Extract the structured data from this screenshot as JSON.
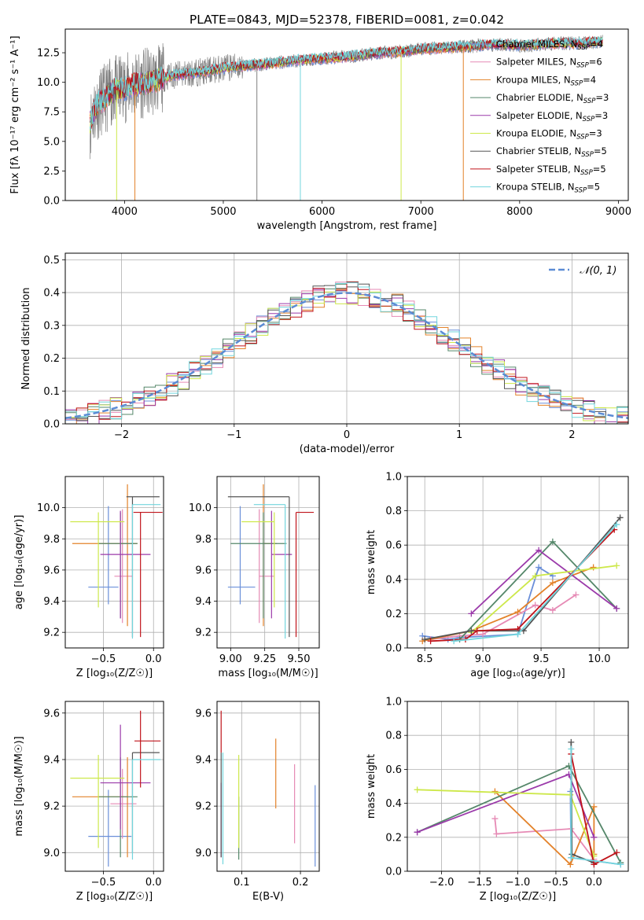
{
  "figure_title": "PLATE=0843, MJD=52378, FIBERID=0081, z=0.042",
  "colors": {
    "ch_miles": "#6a8fd9",
    "sa_miles": "#e68ab5",
    "kr_miles": "#e3822a",
    "ch_elodie": "#55876a",
    "sa_elodie": "#9b3aaa",
    "kr_elodie": "#cde84a",
    "ch_stelib": "#555555",
    "sa_stelib": "#c0141b",
    "kr_stelib": "#72d5dd",
    "data": "#808080",
    "normal": "#5b8bd4"
  },
  "legend_spectrum": [
    {
      "key": "ch_miles",
      "text": "Chabrier MILES, N",
      "sub": "SSP",
      "tail": "=4"
    },
    {
      "key": "sa_miles",
      "text": "Salpeter MILES, N",
      "sub": "SSP",
      "tail": "=6"
    },
    {
      "key": "kr_miles",
      "text": "Kroupa MILES, N",
      "sub": "SSP",
      "tail": "=4"
    },
    {
      "key": "ch_elodie",
      "text": "Chabrier ELODIE, N",
      "sub": "SSP",
      "tail": "=3"
    },
    {
      "key": "sa_elodie",
      "text": "Salpeter ELODIE, N",
      "sub": "SSP",
      "tail": "=3"
    },
    {
      "key": "kr_elodie",
      "text": "Kroupa ELODIE, N",
      "sub": "SSP",
      "tail": "=3"
    },
    {
      "key": "ch_stelib",
      "text": "Chabrier STELIB, N",
      "sub": "SSP",
      "tail": "=5"
    },
    {
      "key": "sa_stelib",
      "text": "Salpeter STELIB, N",
      "sub": "SSP",
      "tail": "=5"
    },
    {
      "key": "kr_stelib",
      "text": "Kroupa STELIB, N",
      "sub": "SSP",
      "tail": "=5"
    }
  ],
  "legend_hist": "𝒩(0, 1)",
  "chart_data": [
    {
      "id": "spectrum",
      "type": "line",
      "title": "PLATE=0843, MJD=52378, FIBERID=0081, z=0.042",
      "xlabel": "wavelength [Angstrom, rest frame]",
      "ylabel": "Flux [fλ 10⁻¹⁷ erg cm⁻² s⁻¹ A⁻¹]",
      "xlim": [
        3400,
        9100
      ],
      "ylim": [
        0,
        14.5
      ],
      "xticks": [
        4000,
        5000,
        6000,
        7000,
        8000,
        9000
      ],
      "yticks": [
        0.0,
        2.5,
        5.0,
        7.5,
        10.0,
        12.5
      ],
      "grid": false,
      "legend_position": "upper-right",
      "continuum": {
        "x": [
          3650,
          3700,
          3750,
          3800,
          3850,
          3900,
          4000,
          4100,
          4200,
          4300,
          4400,
          4500,
          4600,
          4800,
          5000,
          5200,
          5400,
          5600,
          5800,
          6000,
          6200,
          6400,
          6600,
          6800,
          7000,
          7200,
          7400,
          7600,
          7800,
          8000,
          8200,
          8400,
          8600,
          8800
        ],
        "y": [
          6.5,
          7.8,
          8.3,
          8.6,
          9.0,
          9.3,
          9.5,
          9.8,
          9.9,
          10.1,
          10.4,
          10.6,
          10.7,
          10.9,
          11.2,
          11.4,
          11.5,
          11.7,
          11.9,
          12.0,
          12.1,
          12.3,
          12.5,
          12.6,
          12.8,
          12.9,
          13.0,
          13.1,
          13.2,
          13.1,
          13.2,
          13.3,
          13.3,
          13.4
        ]
      },
      "dropouts": [
        {
          "x": 3920,
          "key": "kr_elodie",
          "y": 0
        },
        {
          "x": 4105,
          "key": "kr_miles",
          "y": 0
        },
        {
          "x": 5780,
          "key": "kr_stelib",
          "y": 0
        },
        {
          "x": 5340,
          "key": "data",
          "y": 0
        },
        {
          "x": 6800,
          "key": "kr_elodie",
          "y": 0
        },
        {
          "x": 7430,
          "key": "kr_miles",
          "y": 0
        }
      ]
    },
    {
      "id": "residuals",
      "type": "step",
      "xlabel": "(data-model)/error",
      "ylabel": "Normed distribution",
      "xlim": [
        -2.5,
        2.5
      ],
      "ylim": [
        0,
        0.52
      ],
      "xticks": [
        -2,
        -1,
        0,
        1,
        2
      ],
      "yticks": [
        0.0,
        0.1,
        0.2,
        0.3,
        0.4,
        0.5
      ],
      "grid": true,
      "bin_edges_start": -2.6,
      "bin_width": 0.1,
      "normal": {
        "mean": 0,
        "sigma": 1
      },
      "series_keys": [
        "ch_miles",
        "sa_miles",
        "kr_miles",
        "ch_elodie",
        "sa_elodie",
        "kr_elodie",
        "ch_stelib",
        "sa_stelib",
        "kr_stelib"
      ],
      "noise_amplitude": 0.035
    },
    {
      "id": "age_vs_Z",
      "type": "errorbar",
      "xlabel": "Z [log₁₀(Z/Z☉)]",
      "ylabel": "age  [log₁₀(age/yr)]",
      "xlim": [
        -0.88,
        0.1
      ],
      "ylim": [
        9.1,
        10.2
      ],
      "xticks": [
        -0.5,
        0.0
      ],
      "yticks": [
        9.2,
        9.4,
        9.6,
        9.8,
        10.0
      ],
      "grid": true,
      "points": [
        {
          "key": "ch_miles",
          "x": -0.45,
          "xerr": [
            0.2,
            0.1
          ],
          "y": 9.49,
          "yerr": [
            0.11,
            0.52
          ]
        },
        {
          "key": "sa_miles",
          "x": -0.31,
          "xerr": [
            0.08,
            0.1
          ],
          "y": 9.56,
          "yerr": [
            0.3,
            0.43
          ]
        },
        {
          "key": "kr_miles",
          "x": -0.26,
          "xerr": [
            0.55,
            0.1
          ],
          "y": 9.77,
          "yerr": [
            0.53,
            0.38
          ]
        },
        {
          "key": "ch_elodie",
          "x": -0.33,
          "xerr": [
            0.22,
            0.17
          ],
          "y": 9.77,
          "yerr": [
            0.48,
            0.2
          ]
        },
        {
          "key": "sa_elodie",
          "x": -0.33,
          "xerr": [
            0.2,
            0.3
          ],
          "y": 9.7,
          "yerr": [
            0.41,
            0.28
          ]
        },
        {
          "key": "kr_elodie",
          "x": -0.55,
          "xerr": [
            0.28,
            0.26
          ],
          "y": 9.91,
          "yerr": [
            0.55,
            0.06
          ]
        },
        {
          "key": "ch_stelib",
          "x": -0.21,
          "xerr": [
            0.06,
            0.27
          ],
          "y": 10.07,
          "yerr": [
            0.9,
            0.0
          ]
        },
        {
          "key": "sa_stelib",
          "x": -0.13,
          "xerr": [
            0.07,
            0.22
          ],
          "y": 9.97,
          "yerr": [
            0.8,
            0.0
          ]
        },
        {
          "key": "kr_stelib",
          "x": -0.21,
          "xerr": [
            0.0,
            0.28
          ],
          "y": 10.02,
          "yerr": [
            0.86,
            0.0
          ]
        }
      ]
    },
    {
      "id": "age_vs_mass",
      "type": "errorbar",
      "xlabel": "mass [log₁₀(M/M☉)]",
      "ylabel": "",
      "xlim": [
        8.9,
        9.65
      ],
      "ylim": [
        9.1,
        10.2
      ],
      "xticks": [
        9.0,
        9.25,
        9.5
      ],
      "yticks": [
        9.2,
        9.4,
        9.6,
        9.8,
        10.0
      ],
      "grid": true,
      "points": [
        {
          "key": "ch_miles",
          "x": 9.07,
          "xerr": [
            0.09,
            0.11
          ],
          "y": 9.49,
          "yerr": [
            0.11,
            0.52
          ]
        },
        {
          "key": "sa_miles",
          "x": 9.21,
          "xerr": [
            0.0,
            0.11
          ],
          "y": 9.56,
          "yerr": [
            0.3,
            0.43
          ]
        },
        {
          "key": "kr_miles",
          "x": 9.24,
          "xerr": [
            0.0,
            0.1
          ],
          "y": 9.77,
          "yerr": [
            0.53,
            0.38
          ]
        },
        {
          "key": "ch_elodie",
          "x": 9.24,
          "xerr": [
            0.24,
            0.17
          ],
          "y": 9.77,
          "yerr": [
            0.48,
            0.2
          ]
        },
        {
          "key": "sa_elodie",
          "x": 9.3,
          "xerr": [
            0.0,
            0.15
          ],
          "y": 9.7,
          "yerr": [
            0.41,
            0.28
          ]
        },
        {
          "key": "kr_elodie",
          "x": 9.32,
          "xerr": [
            0.24,
            0.0
          ],
          "y": 9.91,
          "yerr": [
            0.55,
            0.06
          ]
        },
        {
          "key": "ch_stelib",
          "x": 9.43,
          "xerr": [
            0.45,
            0.0
          ],
          "y": 10.07,
          "yerr": [
            0.9,
            0.0
          ]
        },
        {
          "key": "sa_stelib",
          "x": 9.48,
          "xerr": [
            0.0,
            0.13
          ],
          "y": 9.97,
          "yerr": [
            0.8,
            0.0
          ]
        },
        {
          "key": "kr_stelib",
          "x": 9.4,
          "xerr": [
            0.23,
            0.0
          ],
          "y": 10.02,
          "yerr": [
            0.86,
            0.0
          ]
        }
      ]
    },
    {
      "id": "weight_vs_age",
      "type": "line",
      "xlabel": "age  [log₁₀(age/yr)]",
      "ylabel": "mass weight",
      "xlim": [
        8.35,
        10.25
      ],
      "ylim": [
        0,
        1.0
      ],
      "xticks": [
        8.5,
        9.0,
        9.5,
        10.0
      ],
      "yticks": [
        0.0,
        0.2,
        0.4,
        0.6,
        0.8,
        1.0
      ],
      "grid": true,
      "series": [
        {
          "key": "ch_miles",
          "x": [
            8.48,
            8.7,
            8.8,
            9.3,
            9.48,
            9.6
          ],
          "y": [
            0.07,
            0.05,
            0.06,
            0.08,
            0.47,
            0.42
          ]
        },
        {
          "key": "sa_miles",
          "x": [
            8.55,
            8.8,
            9.0,
            9.45,
            9.6,
            9.8
          ],
          "y": [
            0.05,
            0.07,
            0.08,
            0.25,
            0.22,
            0.31
          ]
        },
        {
          "key": "kr_miles",
          "x": [
            8.48,
            8.9,
            9.3,
            9.6,
            9.95
          ],
          "y": [
            0.04,
            0.1,
            0.21,
            0.38,
            0.47
          ]
        },
        {
          "key": "ch_elodie",
          "x": [
            8.8,
            9.6,
            10.15
          ],
          "y": [
            0.05,
            0.62,
            0.23
          ]
        },
        {
          "key": "sa_elodie",
          "x": [
            8.9,
            9.48,
            10.15
          ],
          "y": [
            0.2,
            0.57,
            0.23
          ]
        },
        {
          "key": "kr_elodie",
          "x": [
            8.9,
            9.45,
            10.15
          ],
          "y": [
            0.09,
            0.42,
            0.48
          ]
        },
        {
          "key": "ch_stelib",
          "x": [
            8.5,
            8.9,
            9.35,
            10.18
          ],
          "y": [
            0.05,
            0.1,
            0.1,
            0.76
          ]
        },
        {
          "key": "sa_stelib",
          "x": [
            8.55,
            8.85,
            8.95,
            9.3,
            10.13
          ],
          "y": [
            0.04,
            0.05,
            0.1,
            0.11,
            0.69
          ]
        },
        {
          "key": "kr_stelib",
          "x": [
            8.75,
            9.3,
            10.15
          ],
          "y": [
            0.04,
            0.08,
            0.72
          ]
        }
      ]
    },
    {
      "id": "mass_vs_Z",
      "type": "errorbar",
      "xlabel": "Z [log₁₀(Z/Z☉)]",
      "ylabel": "mass [log₁₀(M/M☉)]",
      "xlim": [
        -0.88,
        0.1
      ],
      "ylim": [
        8.92,
        9.65
      ],
      "xticks": [
        -0.5,
        0.0
      ],
      "yticks": [
        9.0,
        9.2,
        9.4,
        9.6
      ],
      "grid": true,
      "points": [
        {
          "key": "ch_miles",
          "x": -0.45,
          "xerr": [
            0.2,
            0.23
          ],
          "y": 9.07,
          "yerr": [
            0.13,
            0.2
          ]
        },
        {
          "key": "sa_miles",
          "x": -0.31,
          "xerr": [
            0.12,
            0.14
          ],
          "y": 9.21,
          "yerr": [
            0.15,
            0.15
          ]
        },
        {
          "key": "kr_miles",
          "x": -0.26,
          "xerr": [
            0.55,
            0.0
          ],
          "y": 9.24,
          "yerr": [
            0.26,
            0.17
          ]
        },
        {
          "key": "ch_elodie",
          "x": -0.33,
          "xerr": [
            0.22,
            0.17
          ],
          "y": 9.24,
          "yerr": [
            0.26,
            0.17
          ]
        },
        {
          "key": "sa_elodie",
          "x": -0.33,
          "xerr": [
            0.2,
            0.3
          ],
          "y": 9.3,
          "yerr": [
            0.2,
            0.25
          ]
        },
        {
          "key": "kr_elodie",
          "x": -0.55,
          "xerr": [
            0.28,
            0.26
          ],
          "y": 9.32,
          "yerr": [
            0.3,
            0.1
          ]
        },
        {
          "key": "ch_stelib",
          "x": -0.21,
          "xerr": [
            0.0,
            0.27
          ],
          "y": 9.43,
          "yerr": [
            0.43,
            0.0
          ]
        },
        {
          "key": "sa_stelib",
          "x": -0.13,
          "xerr": [
            0.06,
            0.2
          ],
          "y": 9.48,
          "yerr": [
            0.2,
            0.13
          ]
        },
        {
          "key": "kr_stelib",
          "x": -0.21,
          "xerr": [
            0.0,
            0.28
          ],
          "y": 9.4,
          "yerr": [
            0.43,
            0.0
          ]
        }
      ]
    },
    {
      "id": "mass_vs_ebv",
      "type": "errorbar",
      "xlabel": "E(B-V)",
      "ylabel": "",
      "xlim": [
        0.058,
        0.232
      ],
      "ylim": [
        8.92,
        9.65
      ],
      "xticks": [
        0.1,
        0.2
      ],
      "yticks": [
        9.0,
        9.2,
        9.4,
        9.6
      ],
      "grid": true,
      "points": [
        {
          "key": "ch_miles",
          "x": 0.225,
          "xerr": [
            0,
            0
          ],
          "y": 9.07,
          "yerr": [
            0.13,
            0.22
          ]
        },
        {
          "key": "sa_miles",
          "x": 0.19,
          "xerr": [
            0,
            0
          ],
          "y": 9.21,
          "yerr": [
            0.17,
            0.17
          ]
        },
        {
          "key": "kr_miles",
          "x": 0.158,
          "xerr": [
            0,
            0
          ],
          "y": 9.24,
          "yerr": [
            0.05,
            0.25
          ]
        },
        {
          "key": "ch_elodie",
          "x": 0.095,
          "xerr": [
            0,
            0
          ],
          "y": 9.24,
          "yerr": [
            0.27,
            0.0
          ]
        },
        {
          "key": "sa_elodie",
          "x": 0.065,
          "xerr": [
            0,
            0
          ],
          "y": 9.3,
          "yerr": [
            0.32,
            0.0
          ]
        },
        {
          "key": "kr_elodie",
          "x": 0.095,
          "xerr": [
            0,
            0
          ],
          "y": 9.32,
          "yerr": [
            0.3,
            0.1
          ]
        },
        {
          "key": "ch_stelib",
          "x": 0.065,
          "xerr": [
            0,
            0
          ],
          "y": 9.43,
          "yerr": [
            0.45,
            0.0
          ]
        },
        {
          "key": "sa_stelib",
          "x": 0.065,
          "xerr": [
            0,
            0
          ],
          "y": 9.48,
          "yerr": [
            0.05,
            0.13
          ]
        },
        {
          "key": "kr_stelib",
          "x": 0.068,
          "xerr": [
            0,
            0
          ],
          "y": 9.4,
          "yerr": [
            0.45,
            0.03
          ]
        }
      ]
    },
    {
      "id": "weight_vs_Z",
      "type": "line",
      "xlabel": "Z [log₁₀(Z/Z☉)]",
      "ylabel": "mass weight",
      "xlim": [
        -2.45,
        0.45
      ],
      "ylim": [
        0,
        1.0
      ],
      "xticks": [
        -2.0,
        -1.5,
        -1.0,
        -0.5,
        0.0
      ],
      "yticks": [
        0.0,
        0.2,
        0.4,
        0.6,
        0.8,
        1.0
      ],
      "grid": true,
      "series": [
        {
          "key": "ch_miles",
          "x": [
            -0.31,
            -0.3,
            0.35
          ],
          "y": [
            0.47,
            0.08,
            0.04
          ]
        },
        {
          "key": "sa_miles",
          "x": [
            -1.3,
            -1.28,
            -0.3,
            0.0
          ],
          "y": [
            0.31,
            0.22,
            0.25,
            0.07
          ]
        },
        {
          "key": "kr_miles",
          "x": [
            -1.3,
            -0.31,
            0.0,
            0.0
          ],
          "y": [
            0.47,
            0.04,
            0.38,
            0.1
          ]
        },
        {
          "key": "ch_elodie",
          "x": [
            -2.32,
            -0.33,
            0.35
          ],
          "y": [
            0.23,
            0.62,
            0.05
          ]
        },
        {
          "key": "sa_elodie",
          "x": [
            -2.32,
            -0.33,
            0.0
          ],
          "y": [
            0.23,
            0.57,
            0.2
          ]
        },
        {
          "key": "kr_elodie",
          "x": [
            -2.32,
            -0.31,
            0.0
          ],
          "y": [
            0.48,
            0.45,
            0.09
          ]
        },
        {
          "key": "ch_stelib",
          "x": [
            -0.3,
            -0.29,
            0.0
          ],
          "y": [
            0.76,
            0.1,
            0.05
          ]
        },
        {
          "key": "sa_stelib",
          "x": [
            -0.3,
            0.0,
            0.3
          ],
          "y": [
            0.69,
            0.04,
            0.11
          ]
        },
        {
          "key": "kr_stelib",
          "x": [
            -0.3,
            -0.3,
            0.35
          ],
          "y": [
            0.72,
            0.08,
            0.04
          ]
        }
      ]
    }
  ]
}
